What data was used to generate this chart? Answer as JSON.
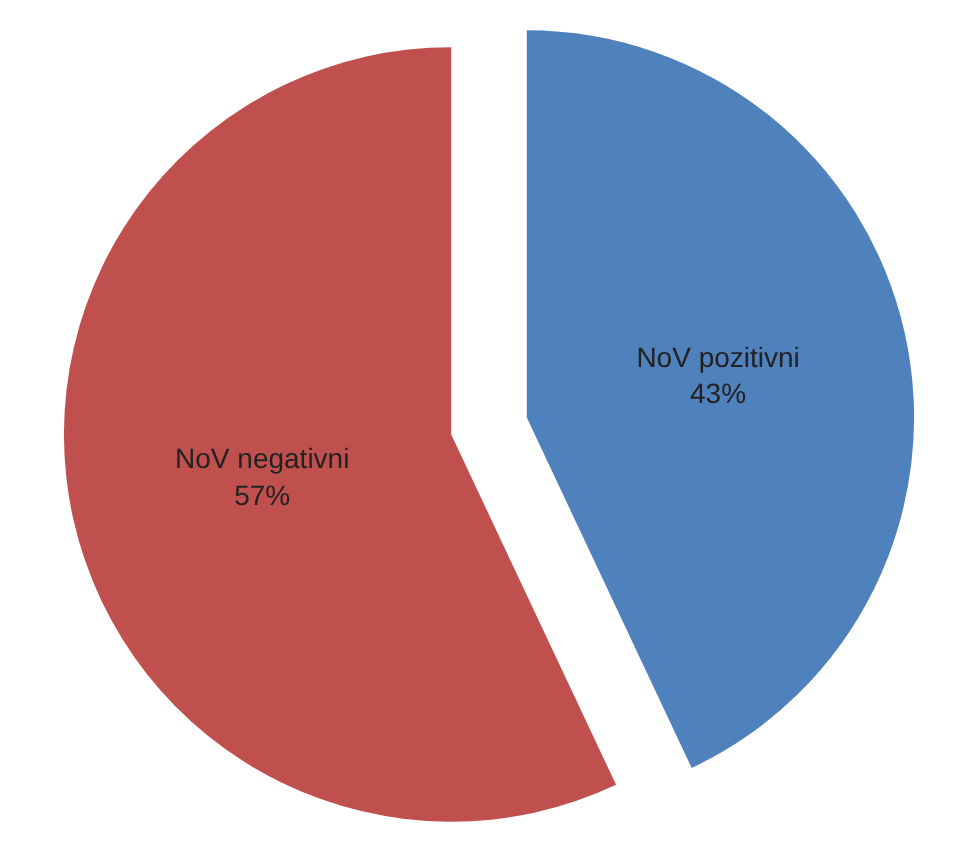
{
  "chart_data": {
    "type": "pie",
    "categories": [
      "NoV pozitivni",
      "NoV negativni"
    ],
    "values": [
      43,
      57
    ],
    "colors": [
      "#4f81bd",
      "#c0504d"
    ],
    "value_labels": [
      "43%",
      "57%"
    ],
    "legend": false
  }
}
